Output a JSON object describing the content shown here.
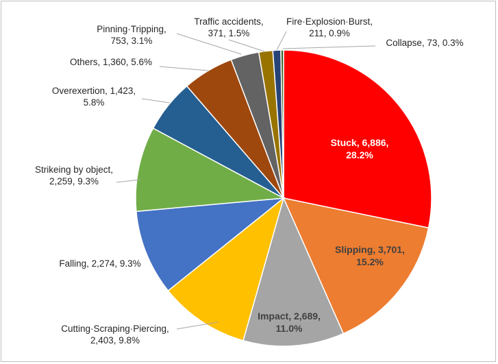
{
  "chart_data": {
    "type": "pie",
    "start_angle_deg": 0,
    "direction": "clockwise",
    "slices": [
      {
        "name": "Stuck",
        "value": 6886,
        "percent": "28.2%",
        "color": "#ff0000",
        "label_lines": [
          "Stuck, 6,886,",
          "28.2%"
        ],
        "label_inside": true,
        "label_color": "#ffffff"
      },
      {
        "name": "Slipping",
        "value": 3701,
        "percent": "15.2%",
        "color": "#ed7d31",
        "label_lines": [
          "Slipping, 3,701,",
          "15.2%"
        ],
        "label_inside": true,
        "label_color": "#404040"
      },
      {
        "name": "Impact",
        "value": 2689,
        "percent": "11.0%",
        "color": "#a5a5a5",
        "label_lines": [
          "Impact, 2,689,",
          "11.0%"
        ],
        "label_inside": true,
        "label_color": "#404040"
      },
      {
        "name": "Cutting·Scraping·Piercing",
        "value": 2403,
        "percent": "9.8%",
        "color": "#ffc000",
        "label_lines": [
          "Cutting·Scraping·Piercing,",
          "2,403, 9.8%"
        ],
        "label_inside": false
      },
      {
        "name": "Falling",
        "value": 2274,
        "percent": "9.3%",
        "color": "#4472c4",
        "label_lines": [
          "Falling, 2,274, 9.3%"
        ],
        "label_inside": false
      },
      {
        "name": "Strikeing by object",
        "value": 2259,
        "percent": "9.3%",
        "color": "#70ad47",
        "label_lines": [
          "Strikeing by object,",
          "2,259, 9.3%"
        ],
        "label_inside": false
      },
      {
        "name": "Overexertion",
        "value": 1423,
        "percent": "5.8%",
        "color": "#255e91",
        "label_lines": [
          "Overexertion, 1,423,",
          "5.8%"
        ],
        "label_inside": false
      },
      {
        "name": "Others",
        "value": 1360,
        "percent": "5.6%",
        "color": "#9e480e",
        "label_lines": [
          "Others, 1,360, 5.6%"
        ],
        "label_inside": false
      },
      {
        "name": "Pinning·Tripping",
        "value": 753,
        "percent": "3.1%",
        "color": "#636363",
        "label_lines": [
          "Pinning·Tripping,",
          "753, 3.1%"
        ],
        "label_inside": false
      },
      {
        "name": "Traffic accidents",
        "value": 371,
        "percent": "1.5%",
        "color": "#997300",
        "label_lines": [
          "Traffic accidents,",
          "371, 1.5%"
        ],
        "label_inside": false
      },
      {
        "name": "Fire·Explosion·Burst",
        "value": 211,
        "percent": "0.9%",
        "color": "#264478",
        "label_lines": [
          "Fire·Explosion·Burst,",
          "211, 0.9%"
        ],
        "label_inside": false
      },
      {
        "name": "Collapse",
        "value": 73,
        "percent": "0.3%",
        "color": "#43682b",
        "label_lines": [
          "Collapse, 73, 0.3%"
        ],
        "label_inside": false
      }
    ]
  }
}
